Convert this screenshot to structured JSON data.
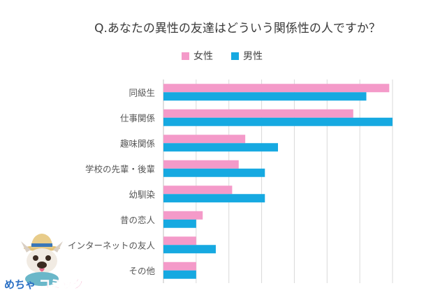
{
  "chart_data": {
    "type": "bar",
    "orientation": "horizontal",
    "title": "Q.あなたの異性の友達はどういう関係性の人ですか？",
    "categories": [
      "同級生",
      "仕事関係",
      "趣味関係",
      "学校の先輩・後輩",
      "幼馴染",
      "昔の恋人",
      "インターネットの友人",
      "その他"
    ],
    "series": [
      {
        "name": "女性",
        "color": "#f49ac9",
        "values": [
          34.5,
          29.0,
          12.5,
          11.5,
          10.5,
          6.0,
          5.0,
          5.0
        ]
      },
      {
        "name": "男性",
        "color": "#16a9e1",
        "values": [
          31.0,
          35.0,
          17.5,
          15.5,
          15.5,
          5.0,
          8.0,
          5.0
        ]
      }
    ],
    "xlim": [
      0,
      35
    ],
    "grid": true,
    "legend_position": "top"
  },
  "logo": {
    "text_left": "めちゃ",
    "text_right": "コミック"
  }
}
